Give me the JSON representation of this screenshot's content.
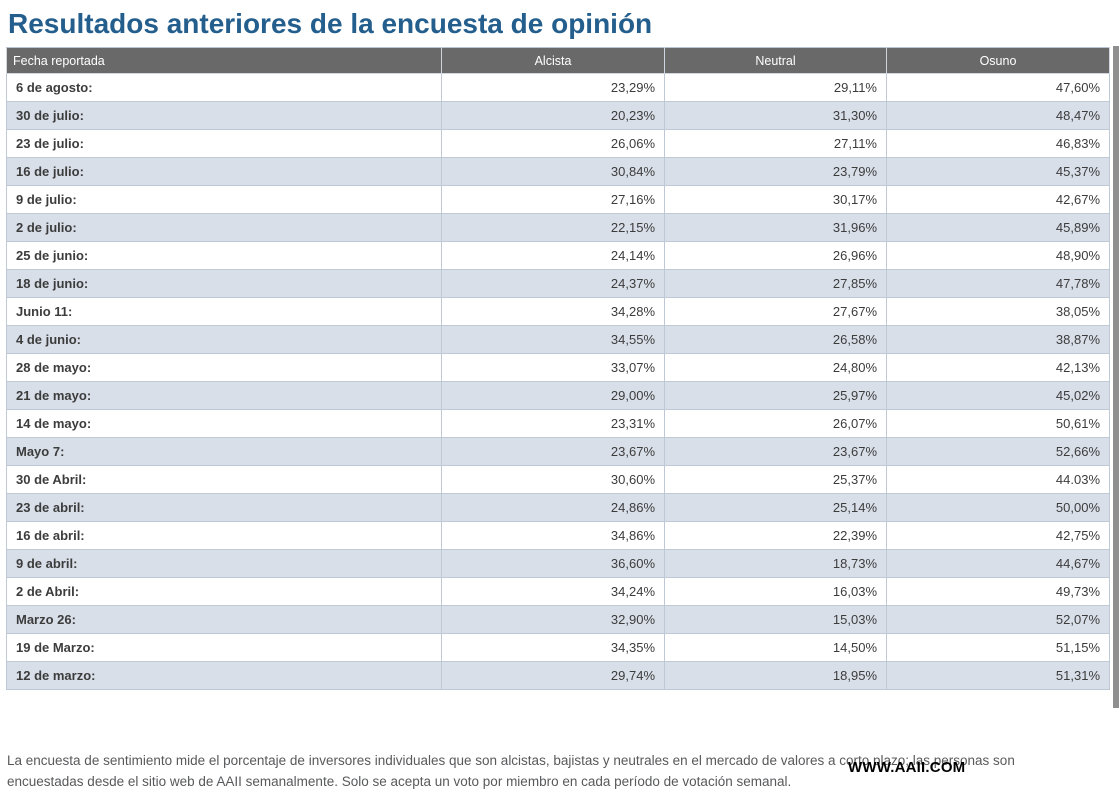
{
  "page": {
    "title": "Resultados anteriores de la encuesta de opinión",
    "footer_text": "La encuesta de sentimiento mide el porcentaje de inversores individuales que son alcistas, bajistas y neutrales en el mercado de valores a corto plazo; las personas son encuestadas desde el sitio web de AAII semanalmente. Solo se acepta un voto por miembro en cada período de votación semanal.",
    "watermark": "WWW.AAII.COM"
  },
  "colors": {
    "title": "#235e8d",
    "header_bg": "#696969",
    "header_text": "#ffffff",
    "row_bg": "#ffffff",
    "row_alt_bg": "#d9dfe9",
    "border": "#bfc9d6",
    "text": "#3c3c3c",
    "footer_text": "#58595b",
    "shadow": "#8f8f8f"
  },
  "table": {
    "columns": [
      "Fecha reportada",
      "Alcista",
      "Neutral",
      "Osuno"
    ],
    "rows": [
      [
        "6 de agosto:",
        "23,29%",
        "29,11%",
        "47,60%"
      ],
      [
        "30 de julio:",
        "20,23%",
        "31,30%",
        "48,47%"
      ],
      [
        "23 de julio:",
        "26,06%",
        "27,11%",
        "46,83%"
      ],
      [
        "16 de julio:",
        "30,84%",
        "23,79%",
        "45,37%"
      ],
      [
        "9 de julio:",
        "27,16%",
        "30,17%",
        "42,67%"
      ],
      [
        "2 de julio:",
        "22,15%",
        "31,96%",
        "45,89%"
      ],
      [
        "25 de junio:",
        "24,14%",
        "26,96%",
        "48,90%"
      ],
      [
        "18 de junio:",
        "24,37%",
        "27,85%",
        "47,78%"
      ],
      [
        "Junio 11:",
        "34,28%",
        "27,67%",
        "38,05%"
      ],
      [
        "4 de junio:",
        "34,55%",
        "26,58%",
        "38,87%"
      ],
      [
        "28 de mayo:",
        "33,07%",
        "24,80%",
        "42,13%"
      ],
      [
        "21 de mayo:",
        "29,00%",
        "25,97%",
        "45,02%"
      ],
      [
        "14 de mayo:",
        "23,31%",
        "26,07%",
        "50,61%"
      ],
      [
        "Mayo 7:",
        "23,67%",
        "23,67%",
        "52,66%"
      ],
      [
        "30 de Abril:",
        "30,60%",
        "25,37%",
        "44.03%"
      ],
      [
        "23 de abril:",
        "24,86%",
        "25,14%",
        "50,00%"
      ],
      [
        "16 de abril:",
        "34,86%",
        "22,39%",
        "42,75%"
      ],
      [
        "9 de abril:",
        "36,60%",
        "18,73%",
        "44,67%"
      ],
      [
        "2 de Abril:",
        "34,24%",
        "16,03%",
        "49,73%"
      ],
      [
        "Marzo 26:",
        "32,90%",
        "15,03%",
        "52,07%"
      ],
      [
        "19 de Marzo:",
        "34,35%",
        "14,50%",
        "51,15%"
      ],
      [
        "12 de marzo:",
        "29,74%",
        "18,95%",
        "51,31%"
      ]
    ]
  },
  "chart_data": {
    "type": "table",
    "title": "Resultados anteriores de la encuesta de opinión",
    "categories": [
      "6 de agosto",
      "30 de julio",
      "23 de julio",
      "16 de julio",
      "9 de julio",
      "2 de julio",
      "25 de junio",
      "18 de junio",
      "Junio 11",
      "4 de junio",
      "28 de mayo",
      "21 de mayo",
      "14 de mayo",
      "Mayo 7",
      "30 de Abril",
      "23 de abril",
      "16 de abril",
      "9 de abril",
      "2 de Abril",
      "Marzo 26",
      "19 de Marzo",
      "12 de marzo"
    ],
    "series": [
      {
        "name": "Alcista",
        "values": [
          23.29,
          20.23,
          26.06,
          30.84,
          27.16,
          22.15,
          24.14,
          24.37,
          34.28,
          34.55,
          33.07,
          29.0,
          23.31,
          23.67,
          30.6,
          24.86,
          34.86,
          36.6,
          34.24,
          32.9,
          34.35,
          29.74
        ]
      },
      {
        "name": "Neutral",
        "values": [
          29.11,
          31.3,
          27.11,
          23.79,
          30.17,
          31.96,
          26.96,
          27.85,
          27.67,
          26.58,
          24.8,
          25.97,
          26.07,
          23.67,
          25.37,
          25.14,
          22.39,
          18.73,
          16.03,
          15.03,
          14.5,
          18.95
        ]
      },
      {
        "name": "Osuno",
        "values": [
          47.6,
          48.47,
          46.83,
          45.37,
          42.67,
          45.89,
          48.9,
          47.78,
          38.05,
          38.87,
          42.13,
          45.02,
          50.61,
          52.66,
          44.03,
          50.0,
          42.75,
          44.67,
          49.73,
          52.07,
          51.15,
          51.31
        ]
      }
    ]
  }
}
